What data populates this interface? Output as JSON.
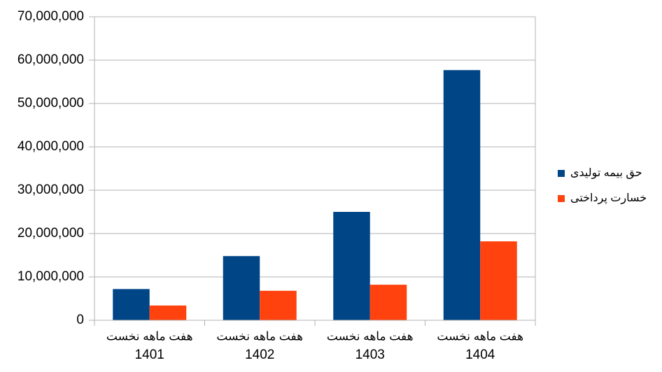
{
  "chart_data": {
    "type": "bar",
    "category_prefix": "هفت ماهه نخست",
    "categories": [
      "1401",
      "1402",
      "1403",
      "1404"
    ],
    "series": [
      {
        "name": "حق بیمه تولیدی",
        "color": "#004586",
        "values": [
          7200000,
          14800000,
          25000000,
          57700000
        ]
      },
      {
        "name": "خسارت پرداختی",
        "color": "#ff420e",
        "values": [
          3400000,
          6800000,
          8200000,
          18200000
        ]
      }
    ],
    "ylim": [
      0,
      70000000
    ],
    "yticks": [
      0,
      {
        "value": 10000000,
        "label": "10,000,000"
      },
      {
        "value": 20000000,
        "label": "20,000,000"
      },
      {
        "value": 30000000,
        "label": "30,000,000"
      },
      {
        "value": 40000000,
        "label": "40,000,000"
      },
      {
        "value": 50000000,
        "label": "50,000,000"
      },
      {
        "value": 60000000,
        "label": "60,000,000"
      },
      {
        "value": 70000000,
        "label": "70,000,000"
      }
    ],
    "grid": true
  }
}
